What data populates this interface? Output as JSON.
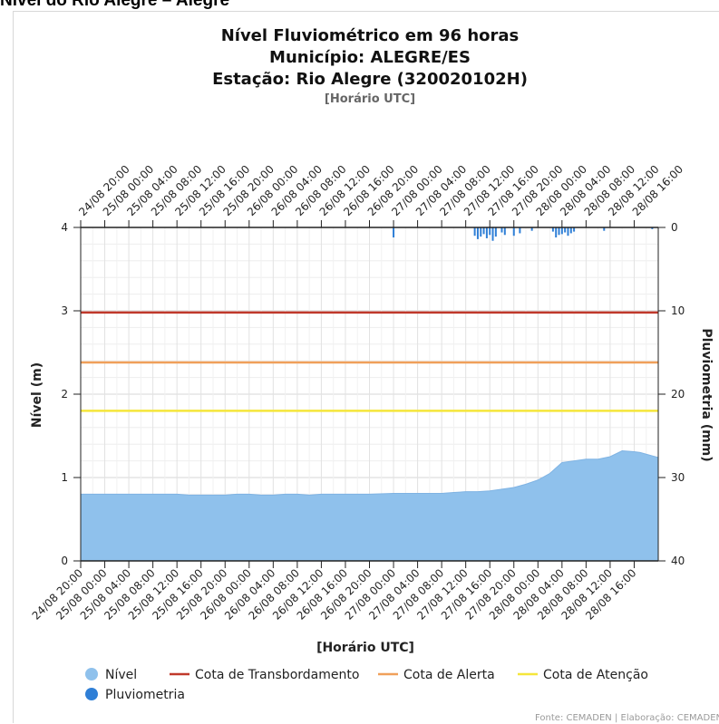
{
  "page": {
    "heading": "Nível do Rio Alegre – Alegre"
  },
  "chart_data": {
    "type": "area",
    "title": "Nível Fluviométrico em 96 horas",
    "subtitle_lines": [
      "Município: ALEGRE/ES",
      "Estação: Rio Alegre (320020102H)"
    ],
    "time_note": "[Horário UTC]",
    "xlabel": "[Horário UTC]",
    "ylabel_left": "Nível (m)",
    "ylabel_right": "Pluviometria (mm)",
    "ylim_left": [
      0,
      4
    ],
    "yticks_left": [
      0,
      1,
      2,
      3,
      4
    ],
    "ylim_right_reversed": [
      0,
      40
    ],
    "yticks_right": [
      0,
      10,
      20,
      30,
      40
    ],
    "x_range_hours": [
      0,
      96
    ],
    "x_tick_labels": [
      "24/08 20:00",
      "25/08 00:00",
      "25/08 04:00",
      "25/08 08:00",
      "25/08 12:00",
      "25/08 16:00",
      "25/08 20:00",
      "26/08 00:00",
      "26/08 04:00",
      "26/08 08:00",
      "26/08 12:00",
      "26/08 16:00",
      "26/08 20:00",
      "27/08 00:00",
      "27/08 04:00",
      "27/08 08:00",
      "27/08 12:00",
      "27/08 16:00",
      "27/08 20:00",
      "28/08 00:00",
      "28/08 04:00",
      "28/08 08:00",
      "28/08 12:00",
      "28/08 16:00"
    ],
    "grid": true,
    "series": [
      {
        "name": "Nível",
        "kind": "area",
        "color": "#8fc1ec",
        "x": [
          0,
          4,
          8,
          12,
          16,
          18,
          20,
          22,
          24,
          26,
          28,
          30,
          32,
          34,
          36,
          38,
          40,
          44,
          48,
          52,
          56,
          58,
          60,
          62,
          64,
          66,
          68,
          70,
          72,
          74,
          76,
          78,
          80,
          82,
          84,
          86,
          88,
          90,
          92,
          93,
          94,
          95,
          96
        ],
        "y": [
          0.8,
          0.8,
          0.8,
          0.8,
          0.8,
          0.79,
          0.79,
          0.79,
          0.79,
          0.8,
          0.8,
          0.79,
          0.79,
          0.8,
          0.8,
          0.79,
          0.8,
          0.8,
          0.8,
          0.81,
          0.81,
          0.81,
          0.81,
          0.82,
          0.83,
          0.83,
          0.84,
          0.86,
          0.88,
          0.92,
          0.97,
          1.05,
          1.18,
          1.2,
          1.22,
          1.22,
          1.25,
          1.32,
          1.31,
          1.3,
          1.28,
          1.26,
          1.24
        ]
      },
      {
        "name": "Pluviometria",
        "kind": "bar_reversed",
        "color": "#2f7fd6",
        "x": [
          52,
          65.5,
          66,
          66.5,
          67,
          67.5,
          68,
          68.5,
          69,
          70,
          70.5,
          72,
          73,
          75,
          78.5,
          79,
          79.5,
          80,
          80.5,
          81,
          81.5,
          82,
          87,
          95
        ],
        "y": [
          1.2,
          1.0,
          1.4,
          1.1,
          0.8,
          1.3,
          0.9,
          1.6,
          1.1,
          0.6,
          0.9,
          1.0,
          0.7,
          0.4,
          0.5,
          1.2,
          0.9,
          0.8,
          0.6,
          1.0,
          0.7,
          0.5,
          0.4,
          0.2
        ]
      },
      {
        "name": "Cota de Transbordamento",
        "kind": "hline",
        "color": "#c0392b",
        "value": 2.98
      },
      {
        "name": "Cota de Alerta",
        "kind": "hline",
        "color": "#f0a05a",
        "value": 2.38
      },
      {
        "name": "Cota de Atenção",
        "kind": "hline",
        "color": "#f5e63a",
        "value": 1.8
      }
    ],
    "legend": [
      {
        "label": "Nível",
        "symbol": "circle",
        "color": "#8fc1ec"
      },
      {
        "label": "Cota de Transbordamento",
        "symbol": "line",
        "color": "#c0392b"
      },
      {
        "label": "Cota de Alerta",
        "symbol": "line",
        "color": "#f0a05a"
      },
      {
        "label": "Cota de Atenção",
        "symbol": "line",
        "color": "#f5e63a"
      },
      {
        "label": "Pluviometria",
        "symbol": "circle",
        "color": "#2f7fd6"
      }
    ],
    "legend_position": "bottom-left",
    "credit": "Fonte: CEMADEN | Elaboração: CEMADEN"
  }
}
